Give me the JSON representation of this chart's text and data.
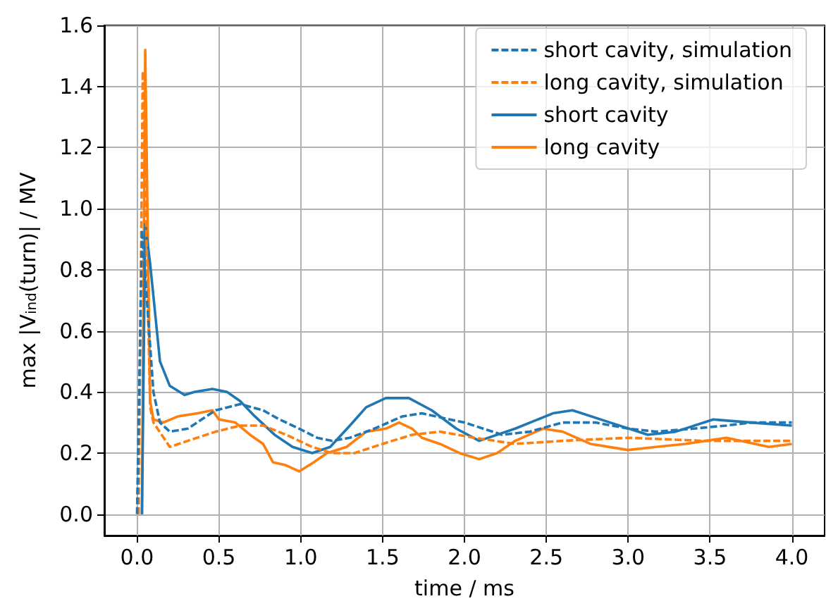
{
  "chart_data": {
    "type": "line",
    "xlabel": "time / ms",
    "ylabel": "max |V$_{ind}$(turn)| / MV",
    "xlim": [
      -0.2,
      4.2
    ],
    "ylim": [
      -0.07,
      1.6
    ],
    "xticks": [
      {
        "value": 0,
        "label": "0.0"
      },
      {
        "value": 0.5,
        "label": "0.5"
      },
      {
        "value": 1,
        "label": "1.0"
      },
      {
        "value": 1.5,
        "label": "1.5"
      },
      {
        "value": 2,
        "label": "2.0"
      },
      {
        "value": 2.5,
        "label": "2.5"
      },
      {
        "value": 3,
        "label": "3.0"
      },
      {
        "value": 3.5,
        "label": "3.5"
      },
      {
        "value": 4,
        "label": "4.0"
      }
    ],
    "yticks": [
      {
        "value": 0,
        "label": "0.0"
      },
      {
        "value": 0.2,
        "label": "0.2"
      },
      {
        "value": 0.4,
        "label": "0.4"
      },
      {
        "value": 0.6,
        "label": "0.6"
      },
      {
        "value": 0.8,
        "label": "0.8"
      },
      {
        "value": 1,
        "label": "1.0"
      },
      {
        "value": 1.2,
        "label": "1.2"
      },
      {
        "value": 1.4,
        "label": "1.4"
      },
      {
        "value": 1.6,
        "label": "1.6"
      }
    ],
    "grid": true,
    "legend": "top right",
    "marker": "none",
    "series": [
      {
        "name": "short cavity, simulation",
        "color": "#1f77b4",
        "line_style": "dashed",
        "x": [
          0,
          0.03,
          0.1,
          0.14,
          0.2,
          0.31,
          0.48,
          0.63,
          0.77,
          0.87,
          0.99,
          1.1,
          1.19,
          1.3,
          1.45,
          1.62,
          1.74,
          1.91,
          2.0,
          2.23,
          2.4,
          2.6,
          2.8,
          3.0,
          3.17,
          3.4,
          3.6,
          3.75,
          4.0
        ],
        "values": [
          0,
          0.93,
          0.4,
          0.3,
          0.27,
          0.28,
          0.34,
          0.36,
          0.34,
          0.31,
          0.28,
          0.25,
          0.24,
          0.25,
          0.28,
          0.32,
          0.33,
          0.31,
          0.3,
          0.26,
          0.27,
          0.3,
          0.3,
          0.28,
          0.27,
          0.28,
          0.29,
          0.3,
          0.3
        ]
      },
      {
        "name": "long cavity, simulation",
        "color": "#ff7f0e",
        "line_style": "dashed",
        "x": [
          0.01,
          0.035,
          0.08,
          0.1,
          0.2,
          0.31,
          0.48,
          0.63,
          0.77,
          0.91,
          1.07,
          1.19,
          1.33,
          1.5,
          1.68,
          1.85,
          2.06,
          2.31,
          2.6,
          3.0,
          3.46,
          4.0
        ],
        "values": [
          0,
          1.45,
          0.35,
          0.3,
          0.22,
          0.24,
          0.27,
          0.29,
          0.29,
          0.26,
          0.22,
          0.2,
          0.2,
          0.23,
          0.26,
          0.27,
          0.25,
          0.23,
          0.24,
          0.25,
          0.24,
          0.24
        ]
      },
      {
        "name": "short cavity",
        "color": "#1f77b4",
        "line_style": "solid",
        "x": [
          0.03,
          0.05,
          0.08,
          0.14,
          0.2,
          0.29,
          0.35,
          0.46,
          0.55,
          0.63,
          0.72,
          0.84,
          0.95,
          1.07,
          1.18,
          1.3,
          1.4,
          1.52,
          1.66,
          1.8,
          1.95,
          2.09,
          2.31,
          2.54,
          2.66,
          2.89,
          3.12,
          3.29,
          3.52,
          3.75,
          4.0
        ],
        "values": [
          0,
          0.95,
          0.82,
          0.5,
          0.42,
          0.39,
          0.4,
          0.41,
          0.4,
          0.37,
          0.32,
          0.26,
          0.22,
          0.2,
          0.22,
          0.29,
          0.35,
          0.38,
          0.38,
          0.34,
          0.28,
          0.24,
          0.28,
          0.33,
          0.34,
          0.3,
          0.26,
          0.27,
          0.31,
          0.3,
          0.29
        ]
      },
      {
        "name": "long cavity",
        "color": "#ff7f0e",
        "line_style": "solid",
        "x": [
          0.03,
          0.05,
          0.08,
          0.1,
          0.16,
          0.25,
          0.37,
          0.46,
          0.5,
          0.6,
          0.69,
          0.77,
          0.83,
          0.91,
          0.99,
          1.08,
          1.16,
          1.28,
          1.4,
          1.52,
          1.6,
          1.68,
          1.74,
          1.85,
          1.97,
          2.09,
          2.2,
          2.31,
          2.48,
          2.6,
          2.77,
          3.0,
          3.17,
          3.35,
          3.6,
          3.86,
          4.0
        ],
        "values": [
          0,
          1.52,
          0.37,
          0.31,
          0.3,
          0.32,
          0.33,
          0.34,
          0.31,
          0.3,
          0.26,
          0.23,
          0.17,
          0.16,
          0.14,
          0.17,
          0.2,
          0.22,
          0.27,
          0.28,
          0.3,
          0.28,
          0.25,
          0.23,
          0.2,
          0.18,
          0.2,
          0.24,
          0.28,
          0.27,
          0.23,
          0.21,
          0.22,
          0.23,
          0.25,
          0.22,
          0.23
        ]
      }
    ]
  }
}
